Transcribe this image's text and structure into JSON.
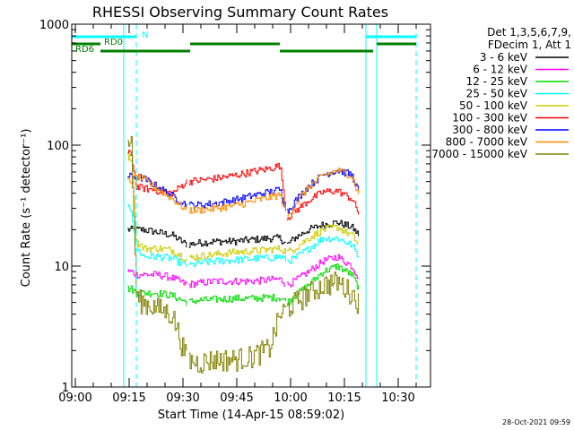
{
  "chart_data": {
    "type": "line",
    "title": "RHESSI Observing Summary Count Rates",
    "xlabel": "Start Time (14-Apr-15 08:59:02)",
    "ylabel": "Count Rate (s⁻¹ detector⁻¹)",
    "yscale": "log",
    "ylim": [
      1,
      1000
    ],
    "xlim_minutes": [
      0,
      100
    ],
    "x_tick_labels": [
      "09:00",
      "09:15",
      "09:30",
      "09:45",
      "10:00",
      "10:15",
      "10:30"
    ],
    "x_tick_minutes": [
      1,
      16,
      31,
      46,
      61,
      76,
      91
    ],
    "y_tick_labels": [
      "1",
      "10",
      "100",
      "1000"
    ],
    "date_stamp": "28-Oct-2021 09:59",
    "legend_header": [
      "Det 1,3,5,6,7,9,",
      "FDecim 1, Att 1"
    ],
    "time_minutes": [
      15,
      16.5,
      18,
      20,
      24,
      28,
      32,
      35,
      40,
      45,
      50,
      55,
      58,
      60,
      62,
      66,
      70,
      74,
      78,
      80
    ],
    "gaps_minutes": [
      [
        14.5
      ],
      [
        32.5
      ],
      [
        60
      ],
      [
        82
      ]
    ],
    "series": [
      {
        "name": "3 - 6 keV",
        "color": "#000000",
        "values": [
          null,
          20,
          20,
          20,
          19,
          18,
          15,
          15.5,
          16,
          16,
          16.5,
          17,
          17,
          15,
          17,
          20,
          22,
          23,
          21,
          18
        ]
      },
      {
        "name": "6 - 12 keV",
        "color": "#ff00ff",
        "values": [
          null,
          9,
          8.5,
          8.5,
          8.5,
          8,
          7,
          7.2,
          7.5,
          7.5,
          7.5,
          7.7,
          7.8,
          7,
          7.5,
          9,
          11,
          12,
          10,
          8
        ]
      },
      {
        "name": "12 - 25 keV",
        "color": "#00dd00",
        "values": [
          null,
          6.5,
          6,
          6,
          6,
          5.7,
          5,
          5.2,
          5.3,
          5.4,
          5.4,
          5.5,
          5.5,
          5,
          5.6,
          7,
          9,
          10,
          8.5,
          6.5
        ]
      },
      {
        "name": "25 - 50 keV",
        "color": "#00ffff",
        "values": [
          null,
          30,
          14,
          12,
          12,
          11.5,
          10,
          10.5,
          11,
          11.2,
          11.5,
          11.7,
          12,
          11,
          11.5,
          14,
          17,
          17,
          15,
          12
        ]
      },
      {
        "name": "50 - 100 keV",
        "color": "#cccc00",
        "values": [
          null,
          80,
          16,
          14,
          14,
          13.5,
          11.5,
          12,
          12.5,
          13,
          13.3,
          13.7,
          14,
          13,
          14,
          17,
          20,
          21,
          18,
          15
        ]
      },
      {
        "name": "100 - 300 keV",
        "color": "#ff0000",
        "values": [
          null,
          85,
          45,
          44,
          42,
          40,
          50,
          51,
          53,
          56,
          60,
          64,
          68,
          25,
          28,
          35,
          41,
          42,
          36,
          27
        ]
      },
      {
        "name": "300 - 800 keV",
        "color": "#0000ff",
        "values": [
          null,
          55,
          55,
          53,
          45,
          38,
          32,
          32,
          33,
          35,
          38,
          41,
          43,
          28,
          34,
          46,
          57,
          62,
          57,
          40
        ]
      },
      {
        "name": "800 - 7000 keV",
        "color": "#ff8c00",
        "values": [
          null,
          50,
          55,
          52,
          43,
          36,
          29,
          29,
          30,
          31.5,
          34,
          37,
          39,
          25,
          32,
          45,
          56,
          62,
          56,
          38
        ]
      },
      {
        "name": "7000 - 15000 keV",
        "color": "#808000",
        "values": [
          null,
          110,
          5.5,
          5,
          4.5,
          4,
          1.7,
          1.6,
          1.7,
          1.7,
          1.8,
          2.1,
          4,
          4.5,
          5,
          6,
          7,
          7.5,
          6,
          5
        ]
      }
    ],
    "markers": {
      "solid_vlines_minutes": [
        0,
        14.5,
        82,
        85
      ],
      "dashed_vlines_minutes": [
        18,
        96
      ]
    },
    "bars": [
      {
        "label": "N",
        "color": "#00ffff",
        "segments_minutes": [
          [
            0,
            18
          ],
          [
            82,
            96
          ]
        ]
      },
      {
        "label": "RD0",
        "color": "#008000",
        "segments_minutes": [
          [
            0,
            8
          ],
          [
            33,
            58
          ],
          [
            85,
            96
          ]
        ]
      },
      {
        "label": "RD6",
        "color": "#008000",
        "segments_minutes": [
          [
            8,
            33
          ],
          [
            58,
            84
          ]
        ]
      }
    ]
  }
}
